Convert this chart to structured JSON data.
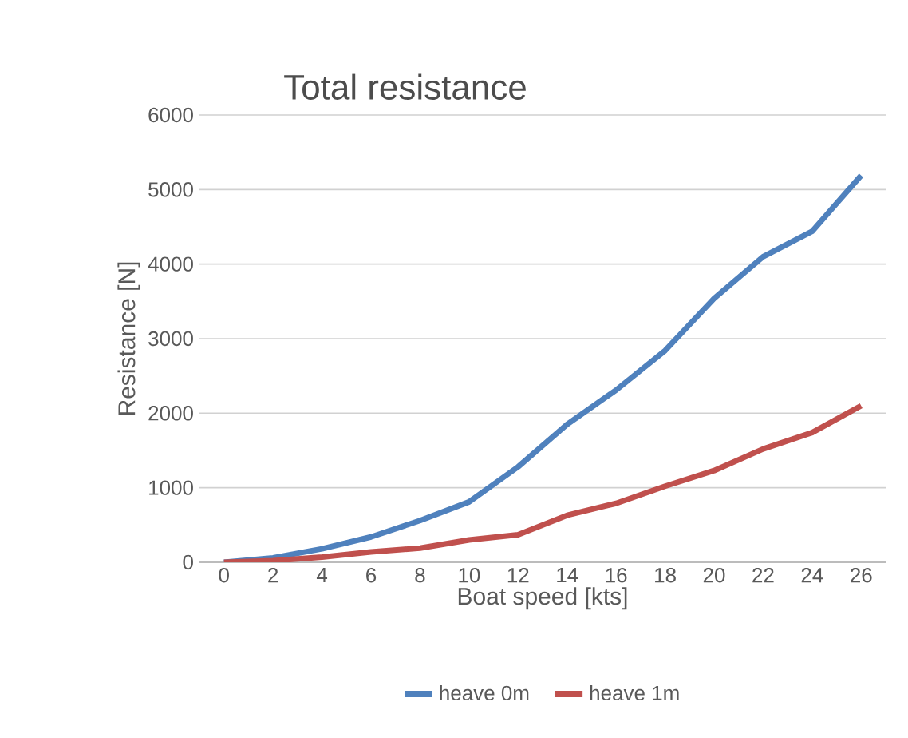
{
  "chart_data": {
    "type": "line",
    "title": "Total resistance",
    "xlabel": "Boat speed [kts]",
    "ylabel": "Resistance [N]",
    "categories": [
      "0",
      "2",
      "4",
      "6",
      "8",
      "10",
      "12",
      "14",
      "16",
      "18",
      "20",
      "22",
      "24",
      "26"
    ],
    "series": [
      {
        "name": "heave 0m",
        "color": "#4f81bd",
        "values": [
          0,
          60,
          180,
          340,
          560,
          810,
          1280,
          1850,
          2310,
          2840,
          3540,
          4100,
          4440,
          5190
        ]
      },
      {
        "name": "heave 1m",
        "color": "#c0504d",
        "values": [
          0,
          20,
          70,
          140,
          190,
          300,
          370,
          630,
          790,
          1020,
          1230,
          1520,
          1740,
          2100
        ]
      }
    ],
    "ylim": [
      0,
      6000
    ],
    "yticks": [
      0,
      1000,
      2000,
      3000,
      4000,
      5000,
      6000
    ],
    "grid": "y",
    "legend": "bottom",
    "marker": "none",
    "line_style": "solid"
  }
}
